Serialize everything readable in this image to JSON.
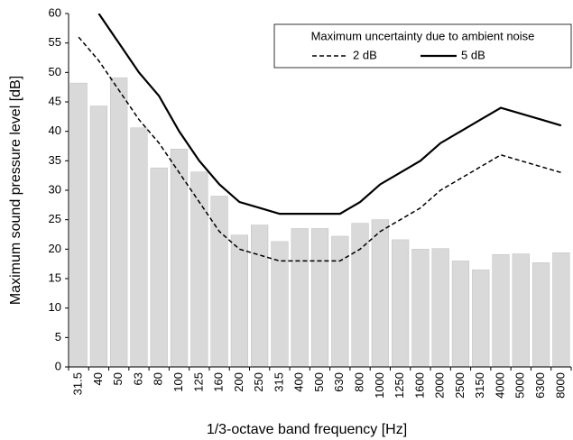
{
  "chart_data": {
    "type": "bar",
    "x_label": "1/3-octave band frequency [Hz]",
    "y_label": "Maximum sound pressure level [dB]",
    "categories": [
      "31.5",
      "40",
      "50",
      "63",
      "80",
      "100",
      "125",
      "160",
      "200",
      "250",
      "315",
      "400",
      "500",
      "630",
      "800",
      "1000",
      "1250",
      "1600",
      "2000",
      "2500",
      "3150",
      "4000",
      "5000",
      "6300",
      "8000"
    ],
    "values": [
      48.2,
      44.3,
      49.1,
      40.6,
      33.8,
      37,
      33.1,
      29,
      22.4,
      24.1,
      21.3,
      23.5,
      23.5,
      22.2,
      24.4,
      25,
      21.6,
      20,
      20.1,
      18,
      16.5,
      19.1,
      19.2,
      17.7,
      19.4
    ],
    "color": "#d9d9d9",
    "series": [
      {
        "name": "2 dB",
        "color": "#000000",
        "dashed": true,
        "values": [
          56,
          52,
          47,
          42,
          38,
          33,
          28,
          23,
          20,
          19,
          18,
          18,
          18,
          18,
          20,
          23,
          25,
          27,
          30,
          32,
          34,
          36,
          35,
          34,
          33
        ]
      },
      {
        "name": "5 dB",
        "color": "#000000",
        "dashed": false,
        "values": [
          null,
          60,
          55,
          50,
          46,
          40,
          35,
          31,
          28,
          27,
          26,
          26,
          26,
          26,
          28,
          31,
          33,
          35,
          38,
          40,
          42,
          44,
          43,
          42,
          41
        ]
      }
    ],
    "legend_title": "Maximum uncertainty due to ambient noise",
    "legend_position": "top-right",
    "ylim": [
      0,
      60
    ],
    "yticks": [
      0,
      5,
      10,
      15,
      20,
      25,
      30,
      35,
      40,
      45,
      50,
      55,
      60
    ],
    "grid": false
  }
}
